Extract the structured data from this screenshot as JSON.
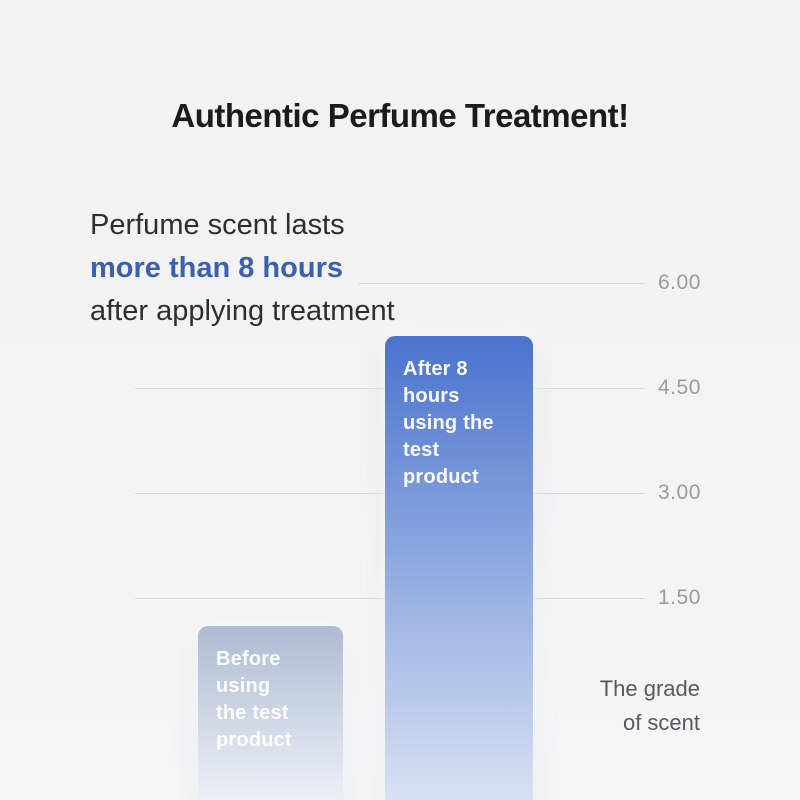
{
  "page": {
    "title": "Authentic Perfume Treatment!",
    "subtitle_line1": "Perfume scent lasts",
    "subtitle_line2": "more than 8 hours",
    "subtitle_line3": "after applying treatment"
  },
  "colors": {
    "background": "#F2F2F2",
    "title_text": "#1B1B1B",
    "subtitle_text": "#2E2E2E",
    "accent_blue_text": "#3B61AD",
    "gridline": "#DBDBDB",
    "tick_label": "#9B9B9B",
    "axis_note_text": "#58595B",
    "bar_label_text": "#FFFFFF"
  },
  "chart_data": {
    "type": "bar",
    "title": "Authentic Perfume Treatment!",
    "ylabel": "The grade of scent",
    "ylim": [
      0,
      6
    ],
    "grid": true,
    "tick_labels_position": "right",
    "yticks": [
      {
        "value": 6.0,
        "label": "6.00"
      },
      {
        "value": 4.5,
        "label": "4.50"
      },
      {
        "value": 3.0,
        "label": "3.00"
      },
      {
        "value": 1.5,
        "label": "1.50"
      }
    ],
    "categories": [
      "Before using the test product",
      "After 8 hours using the test product"
    ],
    "values": [
      1.1,
      5.25
    ],
    "bars": [
      {
        "name": "before",
        "category": "Before using the test product",
        "label_display": "Before using\nthe test product",
        "value": 1.1,
        "color_top": "#AEBBD4",
        "color_bottom": "#EDEFF4"
      },
      {
        "name": "after",
        "category": "After 8 hours using the test product",
        "label_display": "After 8 hours\nusing the test\nproduct",
        "value": 5.25,
        "color_top": "#4A73CE",
        "color_bottom": "#D8E1F3"
      }
    ],
    "axis_note_display": "The grade\nof scent"
  }
}
